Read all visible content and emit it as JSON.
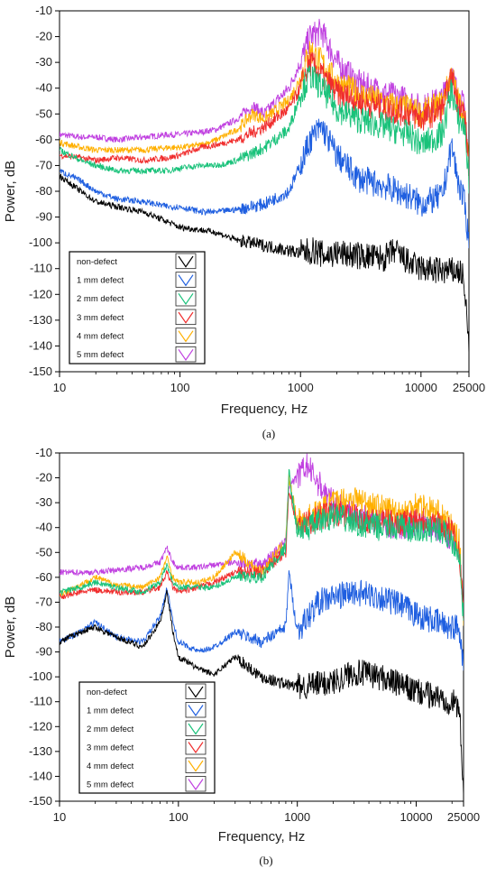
{
  "panel_labels": [
    "(a)",
    "(b)"
  ],
  "colors": {
    "non-defect": "#000000",
    "1 mm defect": "#1f5fe0",
    "2 mm defect": "#19c27a",
    "3 mm defect": "#f02d2d",
    "4 mm defect": "#ffb000",
    "5 mm defect": "#c040e0"
  },
  "chart_data": [
    {
      "type": "line",
      "panel": "(a)",
      "xlabel": "Frequency, Hz",
      "ylabel": "Power, dB",
      "xscale": "log",
      "xlim": [
        10,
        25000
      ],
      "ylim": [
        -150,
        -10
      ],
      "xticks": [
        "10",
        "100",
        "1000",
        "10000",
        "25000"
      ],
      "yticks": [
        "-10",
        "-20",
        "-30",
        "-40",
        "-50",
        "-60",
        "-70",
        "-80",
        "-90",
        "-100",
        "-110",
        "-120",
        "-130",
        "-140",
        "-150"
      ],
      "legend_position": "bottom-left",
      "grid": false,
      "series": [
        {
          "name": "non-defect",
          "x": [
            10,
            15,
            20,
            30,
            50,
            80,
            100,
            150,
            200,
            300,
            500,
            800,
            1000,
            1300,
            1600,
            2000,
            3000,
            5000,
            6000,
            8000,
            10000,
            15000,
            20000,
            22000,
            24000,
            25000
          ],
          "y": [
            -74,
            -80,
            -84,
            -86,
            -88,
            -92,
            -94,
            -95,
            -96,
            -99,
            -101,
            -103,
            -104,
            -103,
            -105,
            -104,
            -105,
            -106,
            -103,
            -108,
            -110,
            -111,
            -111,
            -112,
            -128,
            -143
          ]
        },
        {
          "name": "1 mm defect",
          "x": [
            10,
            15,
            20,
            30,
            50,
            80,
            100,
            150,
            200,
            300,
            500,
            800,
            1000,
            1200,
            1500,
            2000,
            3000,
            5000,
            8000,
            10000,
            15000,
            18000,
            20000,
            23000,
            25000
          ],
          "y": [
            -72,
            -76,
            -80,
            -83,
            -84,
            -86,
            -86,
            -88,
            -88,
            -87,
            -85,
            -80,
            -70,
            -60,
            -55,
            -66,
            -75,
            -78,
            -82,
            -85,
            -82,
            -62,
            -75,
            -85,
            -100
          ]
        },
        {
          "name": "2 mm defect",
          "x": [
            10,
            15,
            20,
            30,
            50,
            80,
            100,
            150,
            200,
            300,
            500,
            800,
            1000,
            1200,
            1500,
            2000,
            3000,
            5000,
            8000,
            10000,
            15000,
            18000,
            20000,
            23000,
            25000
          ],
          "y": [
            -64,
            -68,
            -70,
            -72,
            -72,
            -72,
            -71,
            -70,
            -70,
            -68,
            -63,
            -56,
            -42,
            -35,
            -40,
            -48,
            -52,
            -55,
            -58,
            -62,
            -58,
            -40,
            -52,
            -55,
            -76
          ]
        },
        {
          "name": "3 mm defect",
          "x": [
            10,
            15,
            20,
            30,
            50,
            80,
            100,
            150,
            200,
            300,
            500,
            800,
            1000,
            1200,
            1500,
            2000,
            3000,
            5000,
            8000,
            10000,
            15000,
            18000,
            20000,
            23000,
            25000
          ],
          "y": [
            -66,
            -67,
            -68,
            -67,
            -68,
            -67,
            -66,
            -63,
            -62,
            -60,
            -55,
            -48,
            -40,
            -30,
            -35,
            -42,
            -45,
            -48,
            -50,
            -52,
            -48,
            -36,
            -45,
            -50,
            -72
          ]
        },
        {
          "name": "4 mm defect",
          "x": [
            10,
            15,
            20,
            30,
            50,
            80,
            100,
            150,
            200,
            300,
            400,
            500,
            800,
            1000,
            1200,
            1500,
            2000,
            3000,
            5000,
            8000,
            10000,
            15000,
            18000,
            20000,
            23000,
            25000
          ],
          "y": [
            -61,
            -63,
            -64,
            -64,
            -64,
            -63,
            -63,
            -62,
            -60,
            -56,
            -50,
            -52,
            -45,
            -36,
            -25,
            -30,
            -38,
            -42,
            -46,
            -48,
            -50,
            -46,
            -34,
            -44,
            -50,
            -72
          ]
        },
        {
          "name": "5 mm defect",
          "x": [
            10,
            15,
            20,
            30,
            50,
            80,
            100,
            150,
            200,
            300,
            400,
            500,
            800,
            1000,
            1200,
            1500,
            2000,
            3000,
            5000,
            8000,
            10000,
            15000,
            18000,
            20000,
            23000,
            25000
          ],
          "y": [
            -58,
            -59,
            -59,
            -60,
            -59,
            -58,
            -58,
            -57,
            -56,
            -52,
            -47,
            -50,
            -40,
            -30,
            -20,
            -18,
            -30,
            -38,
            -42,
            -45,
            -48,
            -44,
            -34,
            -42,
            -48,
            -70
          ]
        }
      ]
    },
    {
      "type": "line",
      "panel": "(b)",
      "xlabel": "Frequency, Hz",
      "ylabel": "Power, dB",
      "xscale": "log",
      "xlim": [
        10,
        25000
      ],
      "ylim": [
        -150,
        -10
      ],
      "xticks": [
        "10",
        "100",
        "1000",
        "10000",
        "25000"
      ],
      "yticks": [
        "-10",
        "-20",
        "-30",
        "-40",
        "-50",
        "-60",
        "-70",
        "-80",
        "-90",
        "-100",
        "-110",
        "-120",
        "-130",
        "-140",
        "-150"
      ],
      "legend_position": "bottom-left",
      "grid": false,
      "series": [
        {
          "name": "non-defect",
          "x": [
            10,
            15,
            20,
            30,
            50,
            70,
            80,
            90,
            100,
            150,
            200,
            300,
            500,
            800,
            1000,
            1500,
            2000,
            3000,
            5000,
            8000,
            10000,
            15000,
            20000,
            23000,
            25000
          ],
          "y": [
            -86,
            -82,
            -80,
            -84,
            -88,
            -78,
            -66,
            -82,
            -92,
            -97,
            -99,
            -92,
            -100,
            -103,
            -104,
            -103,
            -102,
            -98,
            -100,
            -104,
            -106,
            -108,
            -110,
            -112,
            -145
          ]
        },
        {
          "name": "1 mm defect",
          "x": [
            10,
            15,
            20,
            30,
            50,
            70,
            80,
            90,
            100,
            150,
            200,
            300,
            500,
            800,
            850,
            1000,
            1500,
            2000,
            3000,
            5000,
            8000,
            10000,
            15000,
            20000,
            23000,
            25000
          ],
          "y": [
            -86,
            -82,
            -78,
            -84,
            -86,
            -76,
            -64,
            -78,
            -86,
            -90,
            -88,
            -82,
            -86,
            -80,
            -58,
            -82,
            -70,
            -68,
            -66,
            -68,
            -72,
            -75,
            -78,
            -80,
            -80,
            -95
          ]
        },
        {
          "name": "2 mm defect",
          "x": [
            10,
            15,
            20,
            30,
            50,
            70,
            80,
            90,
            100,
            150,
            200,
            300,
            500,
            800,
            850,
            1000,
            1500,
            2000,
            3000,
            5000,
            8000,
            10000,
            15000,
            20000,
            23000,
            25000
          ],
          "y": [
            -66,
            -64,
            -62,
            -64,
            -66,
            -62,
            -55,
            -62,
            -64,
            -64,
            -64,
            -60,
            -60,
            -48,
            -18,
            -42,
            -38,
            -35,
            -38,
            -40,
            -40,
            -42,
            -40,
            -45,
            -50,
            -78
          ]
        },
        {
          "name": "3 mm defect",
          "x": [
            10,
            15,
            20,
            30,
            50,
            70,
            80,
            90,
            100,
            150,
            200,
            300,
            500,
            800,
            850,
            1000,
            1500,
            2000,
            3000,
            5000,
            8000,
            10000,
            15000,
            20000,
            23000,
            25000
          ],
          "y": [
            -68,
            -66,
            -65,
            -66,
            -66,
            -64,
            -58,
            -64,
            -66,
            -64,
            -62,
            -58,
            -58,
            -50,
            -24,
            -40,
            -36,
            -34,
            -36,
            -38,
            -38,
            -36,
            -38,
            -42,
            -48,
            -75
          ]
        },
        {
          "name": "4 mm defect",
          "x": [
            10,
            15,
            20,
            30,
            50,
            70,
            80,
            90,
            100,
            150,
            200,
            300,
            500,
            800,
            850,
            1000,
            1500,
            2000,
            3000,
            5000,
            8000,
            10000,
            15000,
            20000,
            23000,
            25000
          ],
          "y": [
            -67,
            -63,
            -60,
            -63,
            -64,
            -60,
            -52,
            -60,
            -62,
            -62,
            -60,
            -50,
            -58,
            -46,
            -20,
            -38,
            -34,
            -30,
            -28,
            -32,
            -34,
            -30,
            -34,
            -40,
            -46,
            -74
          ]
        },
        {
          "name": "5 mm defect",
          "x": [
            10,
            15,
            20,
            30,
            50,
            70,
            80,
            90,
            100,
            150,
            200,
            300,
            500,
            800,
            850,
            1000,
            1200,
            1500,
            2000,
            3000,
            5000,
            8000,
            10000,
            15000,
            20000,
            23000,
            25000
          ],
          "y": [
            -58,
            -58,
            -58,
            -57,
            -56,
            -54,
            -48,
            -54,
            -56,
            -56,
            -55,
            -54,
            -55,
            -46,
            -22,
            -20,
            -15,
            -22,
            -30,
            -35,
            -38,
            -40,
            -38,
            -40,
            -44,
            -50,
            -72
          ]
        }
      ]
    }
  ]
}
